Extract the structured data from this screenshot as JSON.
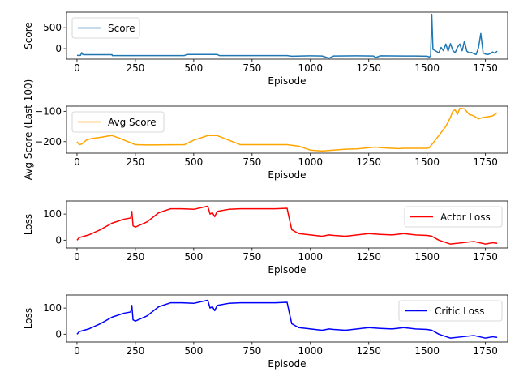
{
  "chart_data": [
    {
      "type": "line",
      "xlabel": "Episode",
      "ylabel": "Score",
      "xlim": [
        -45,
        1845
      ],
      "ylim": [
        -250,
        870
      ],
      "xticks": [
        0,
        250,
        500,
        750,
        1000,
        1250,
        1500,
        1750
      ],
      "yticks": [
        0,
        500
      ],
      "legend_position": "upper-left",
      "series": [
        {
          "name": "Score",
          "color": "#1f77b4",
          "x": [
            0,
            15,
            20,
            25,
            30,
            150,
            151,
            250,
            460,
            470,
            600,
            610,
            900,
            920,
            1000,
            1050,
            1080,
            1100,
            1200,
            1270,
            1280,
            1300,
            1400,
            1450,
            1500,
            1510,
            1515,
            1520,
            1525,
            1530,
            1550,
            1560,
            1570,
            1580,
            1590,
            1600,
            1610,
            1620,
            1630,
            1640,
            1650,
            1660,
            1670,
            1680,
            1690,
            1700,
            1710,
            1720,
            1730,
            1740,
            1750,
            1760,
            1770,
            1780,
            1790,
            1800
          ],
          "y": [
            -160,
            -160,
            -95,
            -140,
            -145,
            -145,
            -165,
            -165,
            -165,
            -140,
            -140,
            -165,
            -165,
            -180,
            -170,
            -175,
            -225,
            -175,
            -170,
            -175,
            -210,
            -170,
            -175,
            -175,
            -180,
            -200,
            -170,
            820,
            -20,
            -30,
            -100,
            30,
            -50,
            110,
            -60,
            120,
            -40,
            -100,
            30,
            110,
            -50,
            180,
            -60,
            -100,
            -90,
            -120,
            -140,
            20,
            360,
            -100,
            -130,
            -140,
            -120,
            -80,
            -110,
            -60
          ]
        }
      ]
    },
    {
      "type": "line",
      "xlabel": "Episode",
      "ylabel": "Avg Score (Last 100)",
      "xlim": [
        -45,
        1845
      ],
      "ylim": [
        -238,
        -83
      ],
      "xticks": [
        0,
        250,
        500,
        750,
        1000,
        1250,
        1500,
        1750
      ],
      "yticks": [
        -200,
        -100
      ],
      "legend_position": "upper-left",
      "series": [
        {
          "name": "Avg Score",
          "color": "#ffa500",
          "x": [
            0,
            10,
            20,
            40,
            60,
            100,
            130,
            150,
            180,
            250,
            300,
            460,
            500,
            560,
            600,
            650,
            700,
            800,
            900,
            950,
            1000,
            1050,
            1100,
            1150,
            1200,
            1250,
            1280,
            1300,
            1350,
            1380,
            1400,
            1450,
            1500,
            1510,
            1520,
            1540,
            1560,
            1580,
            1600,
            1610,
            1620,
            1630,
            1640,
            1660,
            1680,
            1700,
            1720,
            1740,
            1760,
            1780,
            1800
          ],
          "y": [
            -200,
            -210,
            -208,
            -195,
            -190,
            -186,
            -182,
            -180,
            -188,
            -210,
            -211,
            -210,
            -195,
            -180,
            -180,
            -195,
            -210,
            -210,
            -210,
            -215,
            -228,
            -231,
            -228,
            -225,
            -224,
            -220,
            -218,
            -220,
            -222,
            -223,
            -222,
            -222,
            -222,
            -220,
            -210,
            -190,
            -170,
            -150,
            -120,
            -100,
            -95,
            -110,
            -90,
            -92,
            -110,
            -115,
            -125,
            -120,
            -118,
            -115,
            -105
          ]
        }
      ]
    },
    {
      "type": "line",
      "xlabel": "Episode",
      "ylabel": "Loss",
      "xlim": [
        -45,
        1845
      ],
      "ylim": [
        -30,
        150
      ],
      "xticks": [
        0,
        250,
        500,
        750,
        1000,
        1250,
        1500,
        1750
      ],
      "yticks": [
        0,
        100
      ],
      "legend_position": "upper-right",
      "series": [
        {
          "name": "Actor Loss",
          "color": "#ff0000",
          "x": [
            0,
            10,
            50,
            100,
            150,
            200,
            230,
            235,
            240,
            250,
            300,
            350,
            400,
            450,
            500,
            560,
            570,
            580,
            590,
            600,
            650,
            700,
            750,
            800,
            850,
            900,
            910,
            920,
            950,
            1000,
            1050,
            1080,
            1100,
            1150,
            1200,
            1250,
            1300,
            1350,
            1400,
            1450,
            1500,
            1520,
            1550,
            1600,
            1650,
            1700,
            1750,
            1780,
            1800
          ],
          "y": [
            0,
            10,
            20,
            40,
            65,
            80,
            85,
            110,
            55,
            50,
            70,
            105,
            120,
            120,
            118,
            130,
            100,
            105,
            90,
            110,
            118,
            120,
            120,
            120,
            120,
            122,
            80,
            40,
            25,
            20,
            15,
            20,
            18,
            15,
            20,
            25,
            22,
            20,
            25,
            20,
            18,
            15,
            0,
            -15,
            -10,
            -5,
            -15,
            -10,
            -12
          ]
        }
      ]
    },
    {
      "type": "line",
      "xlabel": "Episode",
      "ylabel": "Loss",
      "xlim": [
        -45,
        1845
      ],
      "ylim": [
        -30,
        150
      ],
      "xticks": [
        0,
        250,
        500,
        750,
        1000,
        1250,
        1500,
        1750
      ],
      "yticks": [
        0,
        100
      ],
      "legend_position": "upper-right",
      "series": [
        {
          "name": "Critic Loss",
          "color": "#0000ff",
          "x": [
            0,
            10,
            50,
            100,
            150,
            200,
            230,
            235,
            240,
            250,
            300,
            350,
            400,
            450,
            500,
            560,
            570,
            580,
            590,
            600,
            650,
            700,
            750,
            800,
            850,
            900,
            910,
            920,
            950,
            1000,
            1050,
            1080,
            1100,
            1150,
            1200,
            1250,
            1300,
            1350,
            1400,
            1450,
            1500,
            1520,
            1550,
            1600,
            1650,
            1700,
            1750,
            1780,
            1800
          ],
          "y": [
            0,
            10,
            20,
            40,
            65,
            80,
            85,
            110,
            55,
            50,
            70,
            105,
            120,
            120,
            118,
            130,
            100,
            105,
            90,
            110,
            118,
            120,
            120,
            120,
            120,
            122,
            80,
            40,
            25,
            20,
            15,
            20,
            18,
            15,
            20,
            25,
            22,
            20,
            25,
            20,
            18,
            15,
            0,
            -15,
            -10,
            -5,
            -15,
            -10,
            -12
          ]
        }
      ]
    }
  ]
}
